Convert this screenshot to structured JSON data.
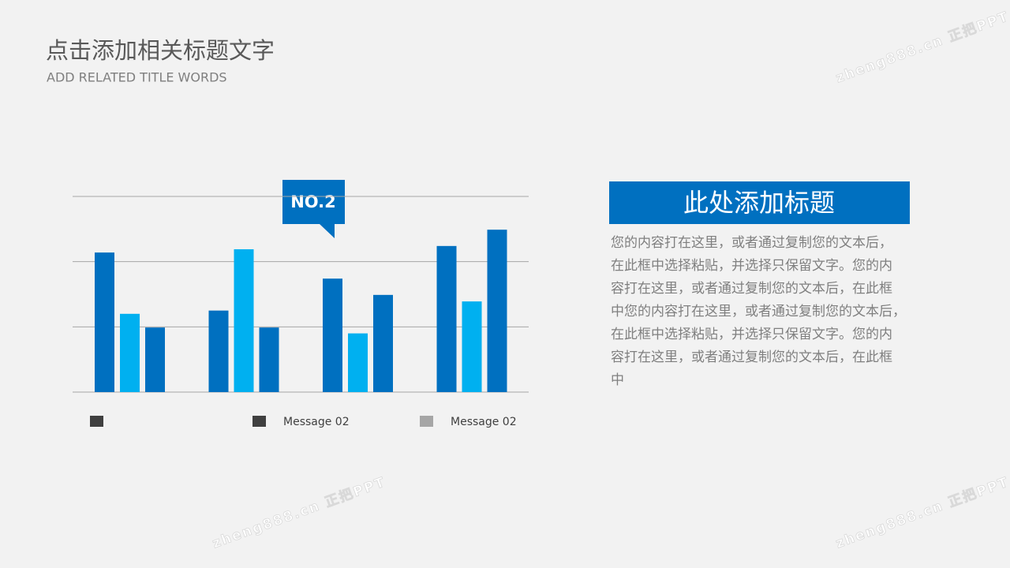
{
  "header": {
    "title": "点击添加相关标题文字",
    "subtitle": "ADD RELATED TITLE WORDS"
  },
  "watermark": "zheng888.cn 正把PPT",
  "chart_data": {
    "type": "bar",
    "categories": [
      null,
      null,
      null,
      null
    ],
    "series": [
      {
        "color": "#0070c0",
        "legend_color": "#404040",
        "values": [
          2.14,
          1.25,
          1.74,
          2.24
        ]
      },
      {
        "name": "Message 02",
        "color": "#00b0f0",
        "legend_color": "#404040",
        "values": [
          1.2,
          2.19,
          0.9,
          1.39
        ]
      },
      {
        "name": "Message 02",
        "color": "#0070c0",
        "legend_color": "#a6a6a6",
        "values": [
          0.99,
          0.99,
          1.49,
          2.49
        ]
      }
    ],
    "ylim": [
      0,
      3
    ],
    "yticks": [
      0,
      1,
      2,
      3
    ],
    "grid": true,
    "annotation": "NO.2"
  },
  "panel": {
    "title": "此处添加标题",
    "lines": [
      "您的内容打在这里，或者通过复制您的文本后，",
      "在此框中选择粘贴，并选择只保留文字。您的内",
      "容打在这里，或者通过复制您的文本后，在此框",
      "中您的内容打在这里，或者通过复制您的文本后，",
      "在此框中选择粘贴，并选择只保留文字。您的内",
      "容打在这里，或者通过复制您的文本后，在此框",
      "中"
    ]
  }
}
